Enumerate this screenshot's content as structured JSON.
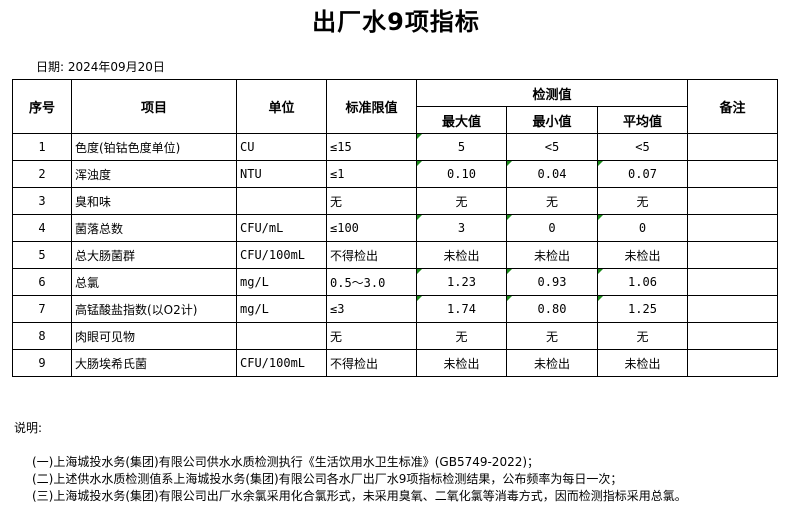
{
  "title": "出厂水9项指标",
  "date": "日期: 2024年09月20日",
  "headers": {
    "no": "序号",
    "item": "项目",
    "unit": "单位",
    "limit": "标准限值",
    "measured": "检测值",
    "max": "最大值",
    "min": "最小值",
    "avg": "平均值",
    "remark": "备注"
  },
  "rows": [
    {
      "no": "1",
      "item": "色度(铂钴色度单位)",
      "unit": "CU",
      "limit": "≤15",
      "max": "5",
      "min": "<5",
      "avg": "<5",
      "remark": ""
    },
    {
      "no": "2",
      "item": "浑浊度",
      "unit": "NTU",
      "limit": "≤1",
      "max": "0.10",
      "min": "0.04",
      "avg": "0.07",
      "remark": ""
    },
    {
      "no": "3",
      "item": "臭和味",
      "unit": "",
      "limit": "无",
      "max": "无",
      "min": "无",
      "avg": "无",
      "remark": ""
    },
    {
      "no": "4",
      "item": "菌落总数",
      "unit": "CFU/mL",
      "limit": "≤100",
      "max": "3",
      "min": "0",
      "avg": "0",
      "remark": ""
    },
    {
      "no": "5",
      "item": "总大肠菌群",
      "unit": "CFU/100mL",
      "limit": "不得检出",
      "max": "未检出",
      "min": "未检出",
      "avg": "未检出",
      "remark": ""
    },
    {
      "no": "6",
      "item": "总氯",
      "unit": "mg/L",
      "limit": "0.5～3.0",
      "max": "1.23",
      "min": "0.93",
      "avg": "1.06",
      "remark": ""
    },
    {
      "no": "7",
      "item": "高锰酸盐指数(以O2计)",
      "unit": "mg/L",
      "limit": "≤3",
      "max": "1.74",
      "min": "0.80",
      "avg": "1.25",
      "remark": ""
    },
    {
      "no": "8",
      "item": "肉眼可见物",
      "unit": "",
      "limit": "无",
      "max": "无",
      "min": "无",
      "avg": "无",
      "remark": ""
    },
    {
      "no": "9",
      "item": "大肠埃希氏菌",
      "unit": "CFU/100mL",
      "limit": "不得检出",
      "max": "未检出",
      "min": "未检出",
      "avg": "未检出",
      "remark": ""
    }
  ],
  "notes": {
    "label": "说明:",
    "items": [
      "(一)上海城投水务(集团)有限公司供水水质检测执行《生活饮用水卫生标准》(GB5749-2022)；",
      "(二)上述供水水质检测值系上海城投水务(集团)有限公司各水厂出厂水9项指标检测结果，公布频率为每日一次；",
      "(三)上海城投水务(集团)有限公司出厂水余氯采用化合氯形式，未采用臭氧、二氧化氯等消毒方式，因而检测指标采用总氯。"
    ]
  },
  "marker_color": "#1a8a1a"
}
